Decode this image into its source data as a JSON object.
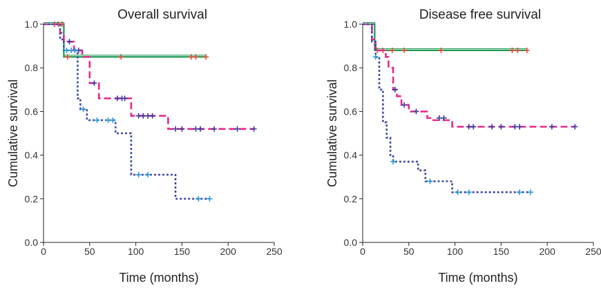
{
  "chart_data": [
    {
      "type": "line",
      "subtype": "kaplan-meier",
      "title": "Overall survival",
      "xlabel": "Time (months)",
      "ylabel": "Cumulative survival",
      "xlim": [
        0,
        250
      ],
      "ylim": [
        0.0,
        1.0
      ],
      "xticks": [
        "0",
        "50",
        "100",
        "150",
        "200",
        "250"
      ],
      "yticks": [
        "0.0",
        "0.2",
        "0.4",
        "0.6",
        "0.8",
        "1.0"
      ],
      "grid": false,
      "series": [
        {
          "color": "#1a9850",
          "line_style": "solid",
          "censor_color": "#e34a33",
          "steps": [
            [
              0,
              1.0
            ],
            [
              22,
              0.85
            ],
            [
              176,
              0.85
            ]
          ],
          "censored": [
            [
              12,
              1.0
            ],
            [
              16,
              1.0
            ],
            [
              20,
              1.0
            ],
            [
              26,
              0.85
            ],
            [
              84,
              0.85
            ],
            [
              160,
              0.85
            ],
            [
              165,
              0.85
            ],
            [
              176,
              0.85
            ]
          ]
        },
        {
          "color": "#e7298a",
          "line_style": "dashed",
          "censor_color": "#3a3a9e",
          "steps": [
            [
              0,
              1.0
            ],
            [
              18,
              0.96
            ],
            [
              22,
              0.92
            ],
            [
              33,
              0.88
            ],
            [
              42,
              0.85
            ],
            [
              50,
              0.73
            ],
            [
              60,
              0.66
            ],
            [
              75,
              0.66
            ],
            [
              95,
              0.58
            ],
            [
              135,
              0.52
            ],
            [
              228,
              0.52
            ]
          ],
          "censored": [
            [
              28,
              0.92
            ],
            [
              38,
              0.88
            ],
            [
              55,
              0.73
            ],
            [
              80,
              0.66
            ],
            [
              85,
              0.66
            ],
            [
              88,
              0.66
            ],
            [
              103,
              0.58
            ],
            [
              108,
              0.58
            ],
            [
              113,
              0.58
            ],
            [
              118,
              0.58
            ],
            [
              143,
              0.52
            ],
            [
              150,
              0.52
            ],
            [
              165,
              0.52
            ],
            [
              170,
              0.52
            ],
            [
              185,
              0.52
            ],
            [
              210,
              0.52
            ],
            [
              228,
              0.52
            ]
          ]
        },
        {
          "color": "#3f48a8",
          "line_style": "dotted",
          "censor_color": "#2b9bd6",
          "steps": [
            [
              0,
              1.0
            ],
            [
              18,
              0.93
            ],
            [
              22,
              0.88
            ],
            [
              37,
              0.66
            ],
            [
              40,
              0.61
            ],
            [
              47,
              0.56
            ],
            [
              78,
              0.5
            ],
            [
              95,
              0.31
            ],
            [
              143,
              0.2
            ],
            [
              180,
              0.2
            ]
          ],
          "censored": [
            [
              25,
              0.88
            ],
            [
              30,
              0.88
            ],
            [
              34,
              0.88
            ],
            [
              43,
              0.61
            ],
            [
              58,
              0.56
            ],
            [
              70,
              0.56
            ],
            [
              75,
              0.56
            ],
            [
              103,
              0.31
            ],
            [
              113,
              0.31
            ],
            [
              168,
              0.2
            ],
            [
              180,
              0.2
            ]
          ]
        }
      ]
    },
    {
      "type": "line",
      "subtype": "kaplan-meier",
      "title": "Disease free survival",
      "xlabel": "Time (months)",
      "ylabel": "Cumulative survival",
      "xlim": [
        0,
        250
      ],
      "ylim": [
        0.0,
        1.0
      ],
      "xticks": [
        "0",
        "50",
        "100",
        "150",
        "200",
        "250"
      ],
      "yticks": [
        "0.0",
        "0.2",
        "0.4",
        "0.6",
        "0.8",
        "1.0"
      ],
      "grid": false,
      "series": [
        {
          "color": "#1a9850",
          "line_style": "solid",
          "censor_color": "#e34a33",
          "steps": [
            [
              0,
              1.0
            ],
            [
              13,
              0.88
            ],
            [
              178,
              0.88
            ]
          ],
          "censored": [
            [
              16,
              0.88
            ],
            [
              22,
              0.88
            ],
            [
              32,
              0.88
            ],
            [
              45,
              0.88
            ],
            [
              85,
              0.88
            ],
            [
              162,
              0.88
            ],
            [
              168,
              0.88
            ],
            [
              178,
              0.88
            ]
          ]
        },
        {
          "color": "#e7298a",
          "line_style": "dashed",
          "censor_color": "#3a3a9e",
          "steps": [
            [
              0,
              1.0
            ],
            [
              10,
              0.93
            ],
            [
              14,
              0.88
            ],
            [
              25,
              0.85
            ],
            [
              28,
              0.8
            ],
            [
              33,
              0.7
            ],
            [
              37,
              0.67
            ],
            [
              42,
              0.63
            ],
            [
              50,
              0.6
            ],
            [
              55,
              0.6
            ],
            [
              70,
              0.57
            ],
            [
              75,
              0.56
            ],
            [
              80,
              0.56
            ],
            [
              97,
              0.53
            ],
            [
              230,
              0.53
            ]
          ],
          "censored": [
            [
              35,
              0.7
            ],
            [
              45,
              0.63
            ],
            [
              58,
              0.6
            ],
            [
              83,
              0.57
            ],
            [
              88,
              0.57
            ],
            [
              115,
              0.53
            ],
            [
              120,
              0.53
            ],
            [
              140,
              0.53
            ],
            [
              150,
              0.53
            ],
            [
              165,
              0.53
            ],
            [
              170,
              0.53
            ],
            [
              205,
              0.53
            ],
            [
              230,
              0.53
            ]
          ]
        },
        {
          "color": "#3f48a8",
          "line_style": "dotted",
          "censor_color": "#2b9bd6",
          "steps": [
            [
              0,
              1.0
            ],
            [
              10,
              0.92
            ],
            [
              14,
              0.85
            ],
            [
              18,
              0.7
            ],
            [
              22,
              0.55
            ],
            [
              26,
              0.48
            ],
            [
              30,
              0.4
            ],
            [
              33,
              0.37
            ],
            [
              60,
              0.33
            ],
            [
              68,
              0.28
            ],
            [
              97,
              0.23
            ],
            [
              182,
              0.23
            ]
          ],
          "censored": [
            [
              14,
              0.85
            ],
            [
              33,
              0.37
            ],
            [
              73,
              0.28
            ],
            [
              103,
              0.23
            ],
            [
              115,
              0.23
            ],
            [
              170,
              0.23
            ],
            [
              182,
              0.23
            ]
          ]
        }
      ]
    }
  ]
}
